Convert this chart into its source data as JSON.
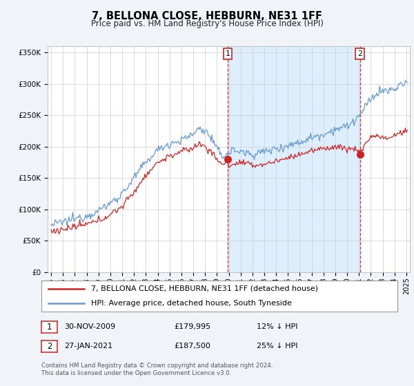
{
  "title": "7, BELLONA CLOSE, HEBBURN, NE31 1FF",
  "subtitle": "Price paid vs. HM Land Registry's House Price Index (HPI)",
  "ylabel_ticks": [
    "£0",
    "£50K",
    "£100K",
    "£150K",
    "£200K",
    "£250K",
    "£300K",
    "£350K"
  ],
  "ytick_values": [
    0,
    50000,
    100000,
    150000,
    200000,
    250000,
    300000,
    350000
  ],
  "ylim": [
    0,
    360000
  ],
  "xlim_start": 1994.7,
  "xlim_end": 2025.3,
  "hpi_color": "#6699cc",
  "price_color": "#cc2222",
  "shade_color": "#ddeeff",
  "vline_color": "#cc2222",
  "legend_label1": "7, BELLONA CLOSE, HEBBURN, NE31 1FF (detached house)",
  "legend_label2": "HPI: Average price, detached house, South Tyneside",
  "transaction1_date": "30-NOV-2009",
  "transaction1_price": "£179,995",
  "transaction1_info": "12% ↓ HPI",
  "transaction1_x": 2009.917,
  "transaction1_y": 179995,
  "transaction2_date": "27-JAN-2021",
  "transaction2_price": "£187,500",
  "transaction2_info": "25% ↓ HPI",
  "transaction2_x": 2021.083,
  "transaction2_y": 187500,
  "footer": "Contains HM Land Registry data © Crown copyright and database right 2024.\nThis data is licensed under the Open Government Licence v3.0.",
  "bg_color": "#f0f4f8",
  "plot_bg_color": "#ffffff"
}
